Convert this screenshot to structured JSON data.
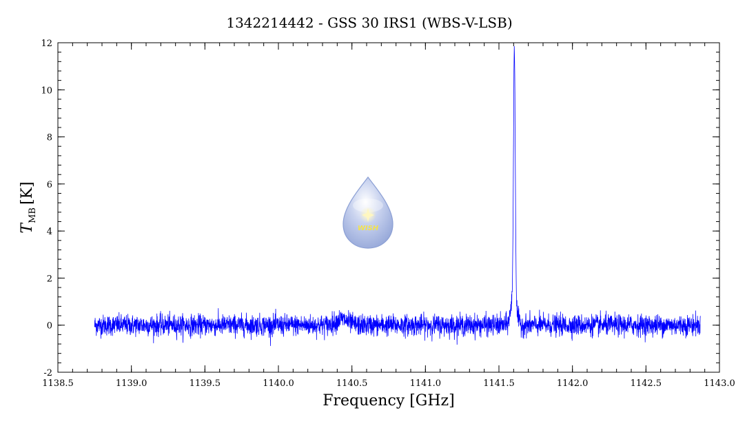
{
  "chart_data": {
    "type": "line",
    "title": "1342214442 - GSS 30 IRS1 (WBS-V-LSB)",
    "xlabel": "Frequency [GHz]",
    "ylabel_main": "T",
    "ylabel_sub": "MB",
    "ylabel_unit": "[K]",
    "xlim": [
      1138.5,
      1143.0
    ],
    "ylim": [
      -2,
      12
    ],
    "x_ticks": [
      "1138.5",
      "1139.0",
      "1139.5",
      "1140.0",
      "1140.5",
      "1141.0",
      "1141.5",
      "1142.0",
      "1142.5",
      "1143.0"
    ],
    "x_tick_values": [
      1138.5,
      1139.0,
      1139.5,
      1140.0,
      1140.5,
      1141.0,
      1141.5,
      1142.0,
      1142.5,
      1143.0
    ],
    "y_ticks": [
      "-2",
      "0",
      "2",
      "4",
      "6",
      "8",
      "10",
      "12"
    ],
    "y_tick_values": [
      -2,
      0,
      2,
      4,
      6,
      8,
      10,
      12
    ],
    "grid": false,
    "series": [
      {
        "color": "#0000ff",
        "x_start": 1138.75,
        "x_end": 1142.87,
        "noise_rms": 0.22,
        "baseline": 0.0,
        "features": [
          {
            "center": 1141.605,
            "peak": 10.6,
            "width": 0.006
          },
          {
            "center": 1141.6,
            "peak": 1.2,
            "width": 0.018
          },
          {
            "center": 1140.43,
            "peak": 0.25,
            "width": 0.04
          }
        ]
      }
    ]
  },
  "logo": {
    "text": "WISH",
    "icon": "water-drop-star-icon",
    "color_top": "#ffffff",
    "color_body": "#a9b9e2",
    "color_edge": "#8b9fd4",
    "star_color": "#fff3a8"
  }
}
